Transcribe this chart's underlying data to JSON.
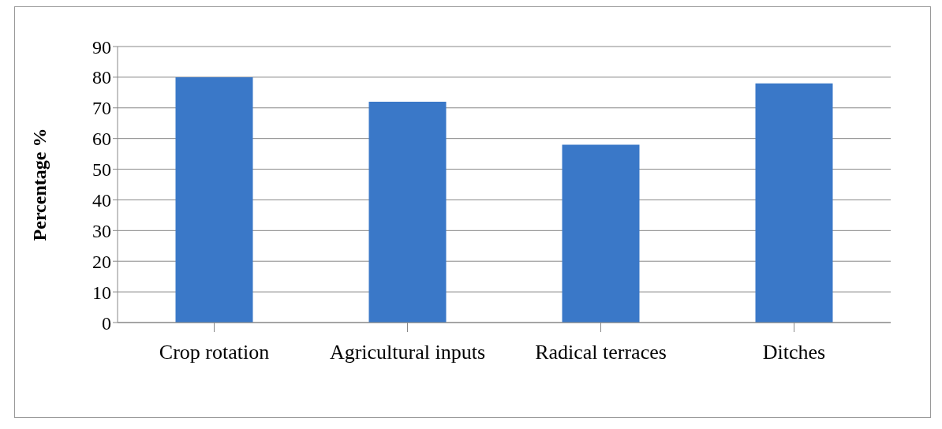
{
  "chart_data": {
    "type": "bar",
    "ylabel": "Percentage %",
    "categories": [
      "Crop rotation",
      "Agricultural inputs",
      "Radical terraces",
      "Ditches"
    ],
    "values": [
      80,
      72,
      58,
      78
    ],
    "color": "#3a78c8",
    "ylim": [
      0,
      90
    ],
    "yticks": [
      0,
      10,
      20,
      30,
      40,
      50,
      60,
      70,
      80,
      90
    ],
    "grid": "y"
  }
}
